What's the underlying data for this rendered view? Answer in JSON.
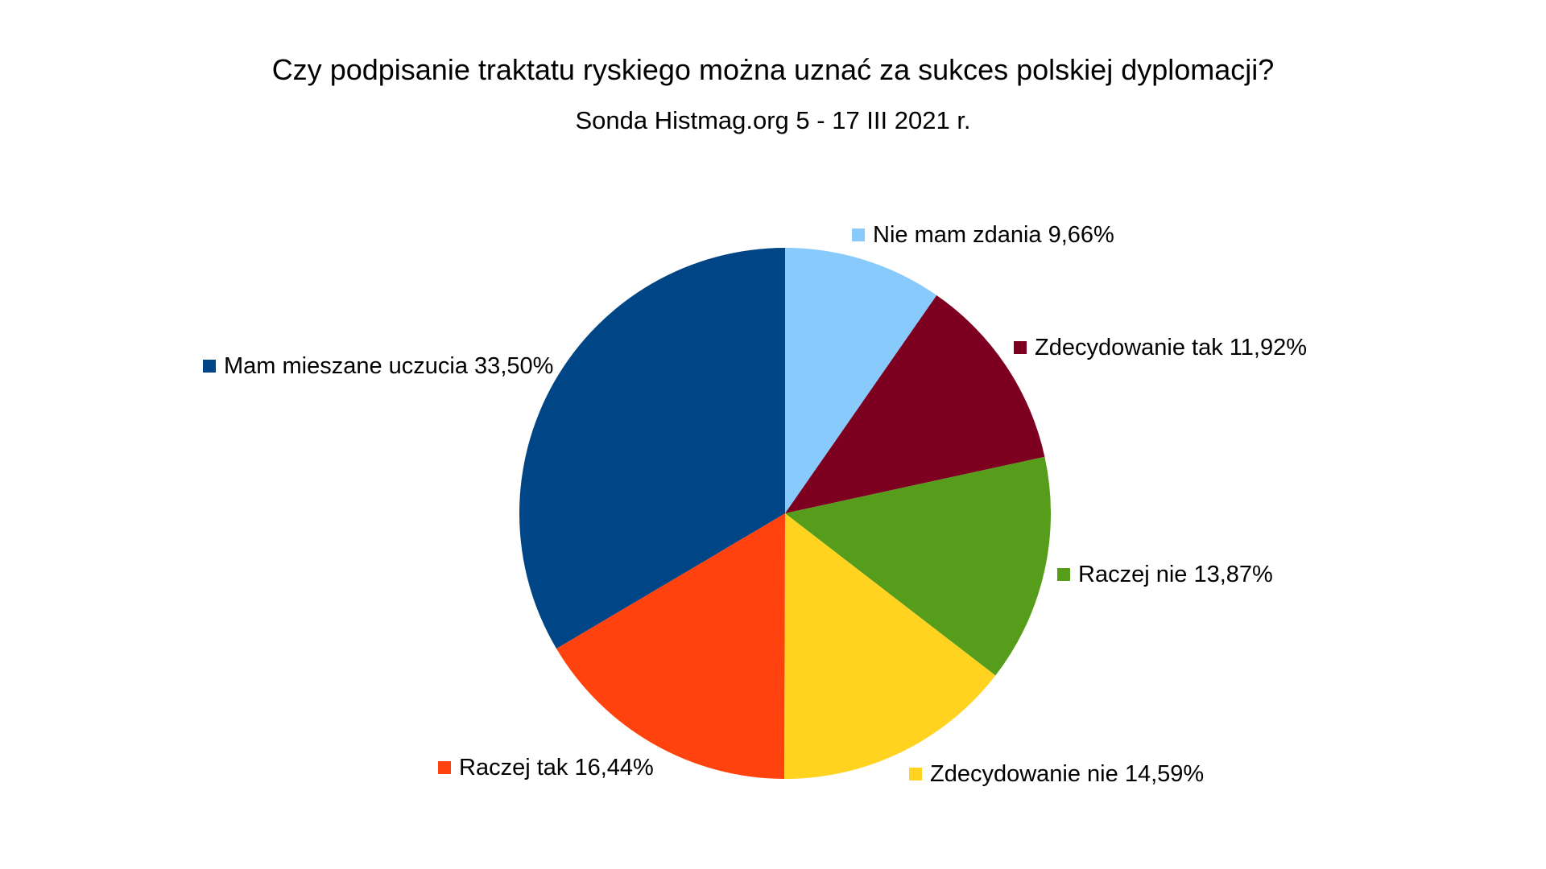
{
  "chart_data": {
    "type": "pie",
    "title": "Czy podpisanie traktatu ryskiego można uznać za sukces polskiej dyplomacji?",
    "subtitle": "Sonda Histmag.org 5 - 17 III 2021 r.",
    "slices": [
      {
        "label": "Nie mam zdania",
        "value_label": "9,66%",
        "value": 9.66,
        "color": "#87CAFB"
      },
      {
        "label": "Zdecydowanie tak",
        "value_label": "11,92%",
        "value": 11.92,
        "color": "#7E0021"
      },
      {
        "label": "Raczej nie",
        "value_label": "13,87%",
        "value": 13.87,
        "color": "#579D1C"
      },
      {
        "label": "Zdecydowanie nie",
        "value_label": "14,59%",
        "value": 14.59,
        "color": "#FFD320"
      },
      {
        "label": "Raczej tak",
        "value_label": "16,44%",
        "value": 16.44,
        "color": "#FF420E"
      },
      {
        "label": "Mam mieszane uczucia",
        "value_label": "33,50%",
        "value": 33.5,
        "color": "#004586"
      }
    ],
    "start": "12 o'clock, clockwise",
    "legend": "labels beside slices with color markers"
  }
}
